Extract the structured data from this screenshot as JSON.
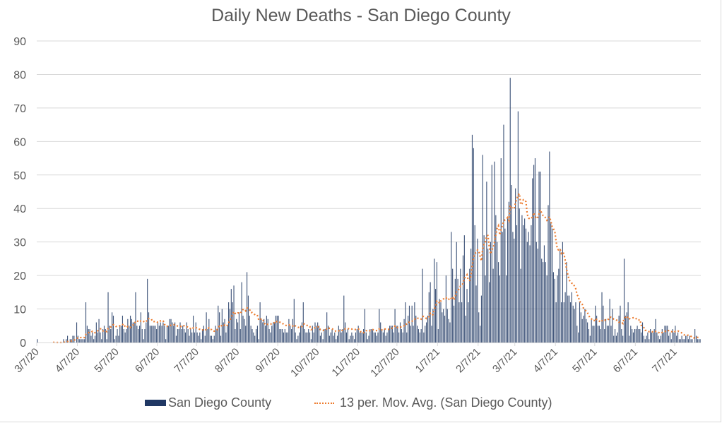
{
  "chart_data": {
    "type": "bar",
    "title": "Daily New Deaths - San Diego County",
    "xlabel": "",
    "ylabel": "",
    "ylim": [
      0,
      90
    ],
    "yticks": [
      0,
      10,
      20,
      30,
      40,
      50,
      60,
      70,
      80,
      90
    ],
    "grid": true,
    "legend_position": "bottom",
    "x_tick_labels": [
      "3/7/20",
      "4/7/20",
      "5/7/20",
      "6/7/20",
      "7/7/20",
      "8/7/20",
      "9/7/20",
      "10/7/20",
      "11/7/20",
      "12/7/20",
      "1/7/21",
      "2/7/21",
      "3/7/21",
      "4/7/21",
      "5/7/21",
      "6/7/21",
      "7/7/21"
    ],
    "x_start": "3/7/20",
    "x_end": "7/26/21",
    "series": [
      {
        "name": "San Diego County",
        "kind": "bar",
        "color": "#203864",
        "weekly_pattern_note": "daily values approximated",
        "values": [
          1,
          0,
          0,
          0,
          0,
          0,
          0,
          0,
          0,
          0,
          0,
          0,
          0,
          0,
          0,
          0,
          0,
          0,
          0,
          0,
          1,
          0,
          1,
          2,
          0,
          1,
          1,
          2,
          2,
          0,
          6,
          2,
          1,
          1,
          1,
          1,
          1,
          12,
          5,
          4,
          4,
          2,
          3,
          1,
          2,
          6,
          3,
          7,
          3,
          1,
          4,
          5,
          4,
          1,
          15,
          5,
          4,
          9,
          8,
          1,
          2,
          4,
          2,
          5,
          5,
          8,
          4,
          3,
          4,
          7,
          5,
          8,
          7,
          6,
          6,
          15,
          5,
          4,
          5,
          9,
          4,
          1,
          4,
          6,
          19,
          9,
          5,
          5,
          5,
          5,
          5,
          4,
          6,
          5,
          6,
          5,
          6,
          5,
          1,
          5,
          5,
          7,
          7,
          6,
          5,
          6,
          2,
          4,
          4,
          6,
          4,
          5,
          4,
          3,
          6,
          4,
          2,
          4,
          3,
          8,
          3,
          6,
          3,
          2,
          3,
          1,
          4,
          5,
          2,
          9,
          4,
          7,
          2,
          2,
          1,
          2,
          5,
          4,
          11,
          9,
          2,
          10,
          6,
          7,
          3,
          5,
          12,
          10,
          16,
          12,
          17,
          4,
          7,
          6,
          9,
          4,
          18,
          8,
          7,
          5,
          21,
          14,
          8,
          5,
          4,
          3,
          2,
          4,
          5,
          1,
          12,
          7,
          6,
          7,
          5,
          8,
          7,
          4,
          3,
          5,
          6,
          6,
          8,
          8,
          8,
          4,
          4,
          4,
          3,
          4,
          3,
          3,
          7,
          5,
          4,
          7,
          13,
          3,
          1,
          2,
          3,
          5,
          6,
          12,
          4,
          3,
          3,
          4,
          3,
          1,
          5,
          3,
          6,
          5,
          6,
          5,
          2,
          3,
          1,
          4,
          4,
          9,
          5,
          2,
          3,
          4,
          2,
          3,
          1,
          2,
          5,
          4,
          3,
          4,
          14,
          6,
          3,
          4,
          1,
          2,
          3,
          2,
          1,
          3,
          4,
          5,
          3,
          3,
          3,
          4,
          10,
          3,
          1,
          2,
          4,
          4,
          4,
          3,
          3,
          2,
          3,
          10,
          6,
          4,
          3,
          4,
          2,
          3,
          4,
          5,
          5,
          5,
          3,
          10,
          5,
          5,
          3,
          6,
          4,
          3,
          7,
          12,
          3,
          8,
          11,
          5,
          11,
          5,
          12,
          8,
          5,
          4,
          3,
          4,
          22,
          3,
          5,
          6,
          8,
          15,
          18,
          5,
          10,
          25,
          16,
          24,
          4,
          13,
          12,
          9,
          10,
          8,
          20,
          10,
          7,
          6,
          33,
          22,
          11,
          19,
          30,
          19,
          12,
          22,
          12,
          26,
          32,
          8,
          16,
          12,
          22,
          28,
          62,
          58,
          35,
          17,
          31,
          9,
          5,
          14,
          56,
          32,
          20,
          48,
          28,
          18,
          30,
          53,
          22,
          54,
          38,
          30,
          24,
          20,
          55,
          33,
          65,
          34,
          20,
          37,
          42,
          79,
          47,
          33,
          31,
          46,
          35,
          69,
          40,
          22,
          38,
          35,
          37,
          34,
          30,
          33,
          29,
          35,
          49,
          53,
          55,
          30,
          28,
          51,
          51,
          25,
          24,
          29,
          24,
          20,
          41,
          57,
          36,
          34,
          21,
          19,
          12,
          20,
          22,
          28,
          12,
          30,
          12,
          15,
          24,
          14,
          14,
          12,
          15,
          11,
          10,
          12,
          5,
          3,
          12,
          9,
          7,
          8,
          10,
          7,
          6,
          4,
          2,
          7,
          5,
          5,
          11,
          8,
          5,
          5,
          4,
          15,
          11,
          4,
          7,
          5,
          5,
          13,
          5,
          10,
          2,
          4,
          2,
          3,
          8,
          11,
          4,
          2,
          25,
          8,
          9,
          12,
          2,
          5,
          4,
          3,
          4,
          4,
          5,
          4,
          4,
          3,
          6,
          2,
          1,
          2,
          3,
          1,
          4,
          3,
          3,
          4,
          7,
          3,
          2,
          1,
          2,
          4,
          3,
          5,
          5,
          5,
          2,
          3,
          1,
          4,
          3,
          5,
          2,
          3,
          1,
          1,
          2,
          1,
          1,
          2,
          2,
          1,
          2,
          1,
          1,
          0,
          4,
          2,
          1,
          1,
          1,
          1,
          1,
          0,
          1,
          2,
          1,
          1,
          0,
          1,
          1,
          1,
          1,
          0,
          0,
          1,
          0,
          1,
          0,
          1,
          1,
          1,
          1,
          0,
          1,
          0,
          1,
          1,
          0,
          6,
          1,
          0,
          1,
          1,
          0,
          1,
          1,
          0,
          0,
          0,
          1,
          0,
          1,
          2,
          1,
          1,
          1,
          0,
          0,
          1,
          0,
          1,
          1,
          0,
          0,
          1,
          1,
          1,
          0,
          1,
          5,
          1,
          0,
          0,
          5,
          0
        ]
      },
      {
        "name": "13 per. Mov. Avg. (San Diego County)",
        "kind": "line",
        "style": "dotted",
        "color": "#ED7D31",
        "period": 13
      }
    ]
  },
  "legend": {
    "bar_label": "San Diego County",
    "line_label": "13 per. Mov. Avg. (San Diego County)"
  }
}
